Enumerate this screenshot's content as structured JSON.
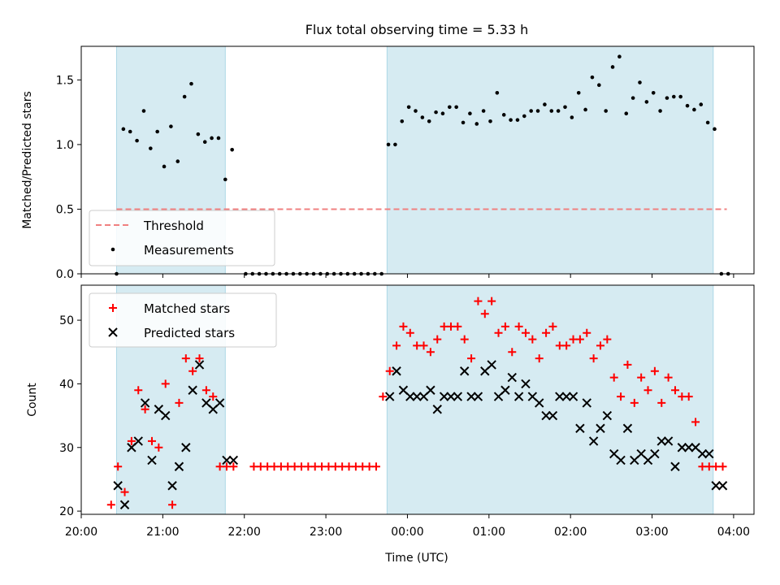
{
  "figure": {
    "title": "Flux total observing time = 5.33 h"
  },
  "chart_data": [
    {
      "type": "scatter",
      "title": "Flux total observing time = 5.33 h",
      "xlabel": "",
      "ylabel": "Matched/Predicted stars",
      "xlim": [
        "20:00",
        "04:15"
      ],
      "ylim": [
        0,
        1.76
      ],
      "yticks": [
        "0.0",
        "0.5",
        "1.0",
        "1.5"
      ],
      "yticks_values": [
        0,
        0.5,
        1.0,
        1.5
      ],
      "xticks": [
        "20:00",
        "21:00",
        "22:00",
        "23:00",
        "00:00",
        "01:00",
        "02:00",
        "03:00",
        "04:00"
      ],
      "observing_windows": [
        [
          "20:26",
          "21:46"
        ],
        [
          "23:45",
          "03:45"
        ]
      ],
      "threshold": {
        "name": "Threshold",
        "value": 0.5,
        "x_range": [
          "20:26",
          "03:55"
        ],
        "color": "#f08080"
      },
      "legend": {
        "placement": "lower-left",
        "entries": [
          "Threshold",
          "Measurements"
        ]
      },
      "series": [
        {
          "name": "Measurements",
          "marker": "dot",
          "color": "#000000",
          "x": [
            "20:26",
            "20:31",
            "20:36",
            "20:41",
            "20:46",
            "20:51",
            "20:56",
            "21:01",
            "21:06",
            "21:11",
            "21:16",
            "21:21",
            "21:26",
            "21:31",
            "21:36",
            "21:41",
            "21:46",
            "21:51",
            "22:01",
            "22:06",
            "22:11",
            "22:16",
            "22:21",
            "22:26",
            "22:31",
            "22:36",
            "22:41",
            "22:46",
            "22:51",
            "22:56",
            "23:01",
            "23:06",
            "23:11",
            "23:16",
            "23:21",
            "23:26",
            "23:31",
            "23:36",
            "23:41",
            "23:46",
            "23:51",
            "23:56",
            "00:01",
            "00:06",
            "00:11",
            "00:16",
            "00:21",
            "00:26",
            "00:31",
            "00:36",
            "00:41",
            "00:46",
            "00:51",
            "00:56",
            "01:01",
            "01:06",
            "01:11",
            "01:16",
            "01:21",
            "01:26",
            "01:31",
            "01:36",
            "01:41",
            "01:46",
            "01:51",
            "01:56",
            "02:01",
            "02:06",
            "02:11",
            "02:16",
            "02:21",
            "02:26",
            "02:31",
            "02:36",
            "02:41",
            "02:46",
            "02:51",
            "02:56",
            "03:01",
            "03:06",
            "03:11",
            "03:16",
            "03:21",
            "03:26",
            "03:31",
            "03:36",
            "03:41",
            "03:46",
            "03:51",
            "03:56"
          ],
          "y": [
            0.0,
            1.12,
            1.1,
            1.03,
            1.26,
            0.97,
            1.1,
            0.83,
            1.14,
            0.87,
            1.37,
            1.47,
            1.08,
            1.02,
            1.05,
            1.05,
            0.73,
            0.96,
            0.0,
            0.0,
            0.0,
            0.0,
            0.0,
            0.0,
            0.0,
            0.0,
            0.0,
            0.0,
            0.0,
            0.0,
            0.0,
            0.0,
            0.0,
            0.0,
            0.0,
            0.0,
            0.0,
            0.0,
            0.0,
            1.0,
            1.0,
            1.18,
            1.29,
            1.26,
            1.21,
            1.18,
            1.25,
            1.24,
            1.29,
            1.29,
            1.17,
            1.24,
            1.16,
            1.26,
            1.18,
            1.4,
            1.23,
            1.19,
            1.19,
            1.22,
            1.26,
            1.26,
            1.31,
            1.26,
            1.26,
            1.29,
            1.21,
            1.4,
            1.27,
            1.52,
            1.46,
            1.26,
            1.6,
            1.68,
            1.24,
            1.36,
            1.48,
            1.33,
            1.4,
            1.26,
            1.36,
            1.37,
            1.37,
            1.3,
            1.27,
            1.31,
            1.17,
            1.12,
            0.0,
            0.0
          ]
        }
      ]
    },
    {
      "type": "scatter",
      "title": "",
      "xlabel": "Time (UTC)",
      "ylabel": "Count",
      "xlim": [
        "20:00",
        "04:15"
      ],
      "ylim": [
        19.5,
        55.5
      ],
      "yticks": [
        "20",
        "30",
        "40",
        "50"
      ],
      "yticks_values": [
        20,
        30,
        40,
        50
      ],
      "xticks": [
        "20:00",
        "21:00",
        "22:00",
        "23:00",
        "00:00",
        "01:00",
        "02:00",
        "03:00",
        "04:00"
      ],
      "observing_windows": [
        [
          "20:26",
          "21:46"
        ],
        [
          "23:45",
          "03:45"
        ]
      ],
      "legend": {
        "placement": "top-left",
        "entries": [
          "Matched stars",
          "Predicted stars"
        ]
      },
      "series": [
        {
          "name": "Matched stars",
          "marker": "plus",
          "color": "#ff0000",
          "x": [
            "20:22",
            "20:27",
            "20:32",
            "20:37",
            "20:42",
            "20:47",
            "20:52",
            "20:57",
            "21:02",
            "21:07",
            "21:12",
            "21:17",
            "21:22",
            "21:27",
            "21:32",
            "21:37",
            "21:42",
            "21:47",
            "21:52",
            "22:07",
            "22:12",
            "22:17",
            "22:22",
            "22:27",
            "22:32",
            "22:37",
            "22:42",
            "22:47",
            "22:52",
            "22:57",
            "23:02",
            "23:07",
            "23:12",
            "23:17",
            "23:22",
            "23:27",
            "23:32",
            "23:37",
            "23:42",
            "23:47",
            "23:52",
            "23:57",
            "00:02",
            "00:07",
            "00:12",
            "00:17",
            "00:22",
            "00:27",
            "00:32",
            "00:37",
            "00:42",
            "00:47",
            "00:52",
            "00:57",
            "01:02",
            "01:07",
            "01:12",
            "01:17",
            "01:22",
            "01:27",
            "01:32",
            "01:37",
            "01:42",
            "01:47",
            "01:52",
            "01:57",
            "02:02",
            "02:07",
            "02:12",
            "02:17",
            "02:22",
            "02:27",
            "02:32",
            "02:37",
            "02:42",
            "02:47",
            "02:52",
            "02:57",
            "03:02",
            "03:07",
            "03:12",
            "03:17",
            "03:22",
            "03:27",
            "03:32",
            "03:37",
            "03:42",
            "03:47",
            "03:52"
          ],
          "y": [
            21,
            27,
            23,
            31,
            39,
            36,
            31,
            30,
            40,
            21,
            37,
            44,
            42,
            44,
            39,
            38,
            27,
            27,
            27,
            27,
            27,
            27,
            27,
            27,
            27,
            27,
            27,
            27,
            27,
            27,
            27,
            27,
            27,
            27,
            27,
            27,
            27,
            27,
            38,
            42,
            46,
            49,
            48,
            46,
            46,
            45,
            47,
            49,
            49,
            49,
            47,
            44,
            53,
            51,
            53,
            48,
            49,
            45,
            49,
            48,
            47,
            44,
            48,
            49,
            46,
            46,
            47,
            47,
            48,
            44,
            46,
            47,
            41,
            38,
            43,
            37,
            41,
            39,
            42,
            37,
            41,
            39,
            38,
            38,
            34,
            27,
            27,
            27,
            27
          ]
        },
        {
          "name": "Predicted stars",
          "marker": "x",
          "color": "#000000",
          "x": [
            "20:27",
            "20:32",
            "20:37",
            "20:42",
            "20:47",
            "20:52",
            "20:57",
            "21:02",
            "21:07",
            "21:12",
            "21:17",
            "21:22",
            "21:27",
            "21:32",
            "21:37",
            "21:42",
            "21:47",
            "21:52",
            "23:47",
            "23:52",
            "23:57",
            "00:02",
            "00:07",
            "00:12",
            "00:17",
            "00:22",
            "00:27",
            "00:32",
            "00:37",
            "00:42",
            "00:47",
            "00:52",
            "00:57",
            "01:02",
            "01:07",
            "01:12",
            "01:17",
            "01:22",
            "01:27",
            "01:32",
            "01:37",
            "01:42",
            "01:47",
            "01:52",
            "01:57",
            "02:02",
            "02:07",
            "02:12",
            "02:17",
            "02:22",
            "02:27",
            "02:32",
            "02:37",
            "02:42",
            "02:47",
            "02:52",
            "02:57",
            "03:02",
            "03:07",
            "03:12",
            "03:17",
            "03:22",
            "03:27",
            "03:32",
            "03:37",
            "03:42",
            "03:47",
            "03:52"
          ],
          "y": [
            24,
            21,
            30,
            31,
            37,
            28,
            36,
            35,
            24,
            27,
            30,
            39,
            43,
            37,
            36,
            37,
            28,
            28,
            38,
            42,
            39,
            38,
            38,
            38,
            39,
            36,
            38,
            38,
            38,
            42,
            38,
            38,
            42,
            43,
            38,
            39,
            41,
            38,
            40,
            38,
            37,
            35,
            35,
            38,
            38,
            38,
            33,
            37,
            31,
            33,
            35,
            29,
            28,
            33,
            28,
            29,
            28,
            29,
            31,
            31,
            27,
            30,
            30,
            30,
            29,
            29,
            24,
            24
          ]
        }
      ]
    }
  ]
}
